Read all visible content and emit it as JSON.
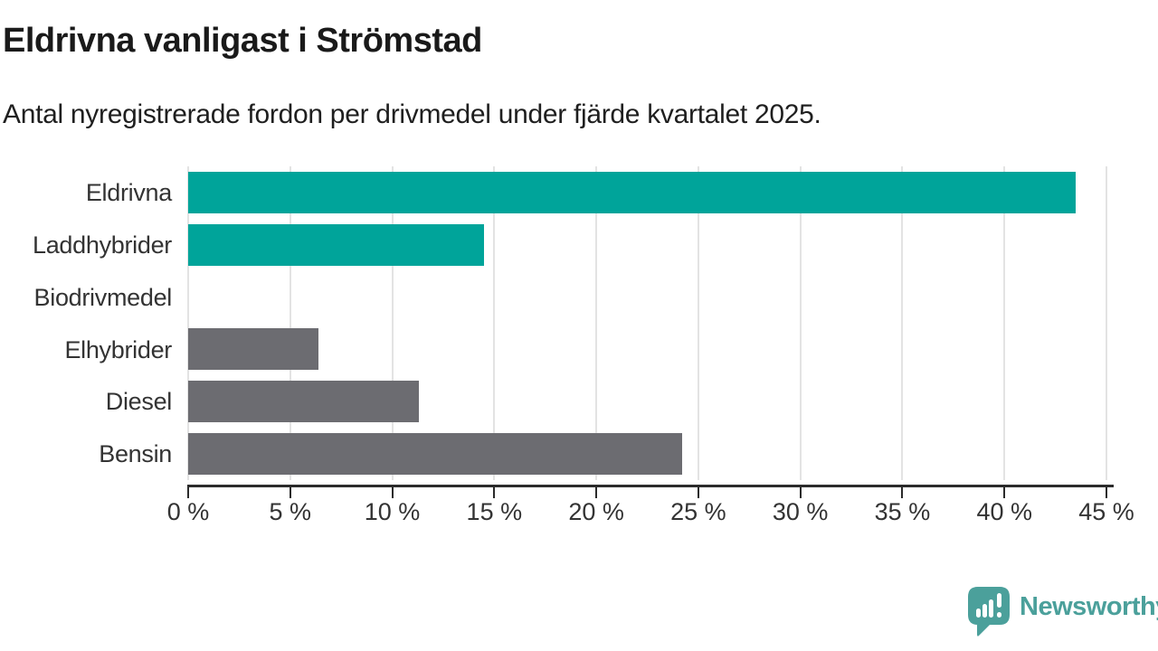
{
  "header": {
    "title": "Eldrivna vanligast i Strömstad",
    "subtitle": "Antal nyregistrerade fordon per drivmedel under fjärde kvartalet 2025."
  },
  "chart_data": {
    "type": "bar",
    "orientation": "horizontal",
    "title": "Eldrivna vanligast i Strömstad",
    "subtitle": "Antal nyregistrerade fordon per drivmedel under fjärde kvartalet 2025.",
    "categories": [
      "Eldrivna",
      "Laddhybrider",
      "Biodrivmedel",
      "Elhybrider",
      "Diesel",
      "Bensin"
    ],
    "values": [
      43.5,
      14.5,
      0,
      6.4,
      11.3,
      24.2
    ],
    "unit": "%",
    "bar_colors": [
      "#00a49a",
      "#00a49a",
      "#6c6c71",
      "#6c6c71",
      "#6c6c71",
      "#6c6c71"
    ],
    "xlim": [
      0,
      45
    ],
    "x_ticks": [
      0,
      5,
      10,
      15,
      20,
      25,
      30,
      35,
      40,
      45
    ],
    "x_tick_labels": [
      "0 %",
      "5 %",
      "10 %",
      "15 %",
      "20 %",
      "25 %",
      "30 %",
      "35 %",
      "40 %",
      "45 %"
    ],
    "xlabel": "",
    "ylabel": "",
    "grid": "vertical",
    "legend": "none"
  },
  "branding": {
    "wordmark": "Newsworthy",
    "icon": "bar-chart-speech-bubble-icon",
    "color": "#4ba09b"
  },
  "colors": {
    "accent_teal": "#00a49a",
    "neutral_gray": "#6c6c71",
    "title_text": "#1a1a1a",
    "body_text": "#333333",
    "gridline": "#e3e3e3",
    "axis": "#2b2b2b"
  }
}
